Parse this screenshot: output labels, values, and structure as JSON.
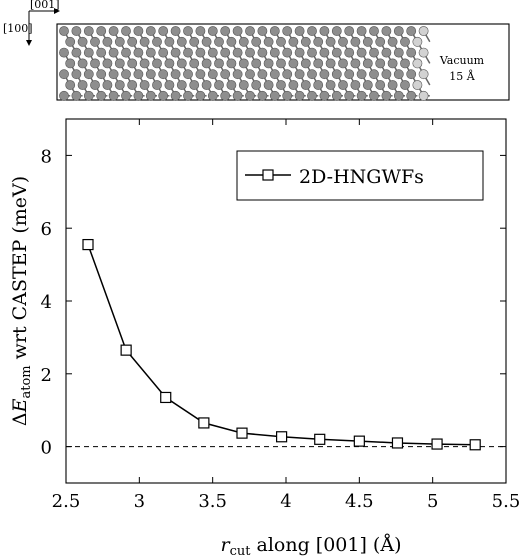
{
  "inset": {
    "axis_label_001": "[001]",
    "axis_label_100": "[100]",
    "vacuum_label": "Vacuum",
    "vacuum_size": "15 Å",
    "atom_colors": [
      "#8e8e8e",
      "#d2d2d2"
    ]
  },
  "chart_data": {
    "type": "line",
    "x": [
      2.65,
      2.91,
      3.18,
      3.44,
      3.7,
      3.97,
      4.23,
      4.5,
      4.76,
      5.03,
      5.29
    ],
    "series": [
      {
        "name": "2D-HNGWFs",
        "values": [
          5.55,
          2.65,
          1.35,
          0.65,
          0.37,
          0.27,
          0.2,
          0.15,
          0.1,
          0.07,
          0.05
        ],
        "marker": "square",
        "color": "#000000"
      }
    ],
    "reference_line": {
      "y": 0,
      "style": "dashed"
    },
    "xlim": [
      2.5,
      5.5
    ],
    "ylim": [
      -1,
      9
    ],
    "xticks": [
      2.5,
      3,
      3.5,
      4,
      4.5,
      5,
      5.5
    ],
    "xtick_labels": [
      "2.5",
      "3",
      "3.5",
      "4",
      "4.5",
      "5",
      "5.5"
    ],
    "yticks": [
      0,
      2,
      4,
      6,
      8
    ],
    "ytick_labels": [
      "0",
      "2",
      "4",
      "6",
      "8"
    ],
    "xlabel": {
      "var": "r",
      "sub": "cut",
      "rest": " along [001] (Å)"
    },
    "ylabel": {
      "delta": "Δ",
      "var": "E",
      "sub": "atom",
      "rest": " wrt CASTEP (meV)"
    },
    "legend_position": "top-right",
    "grid": false
  }
}
